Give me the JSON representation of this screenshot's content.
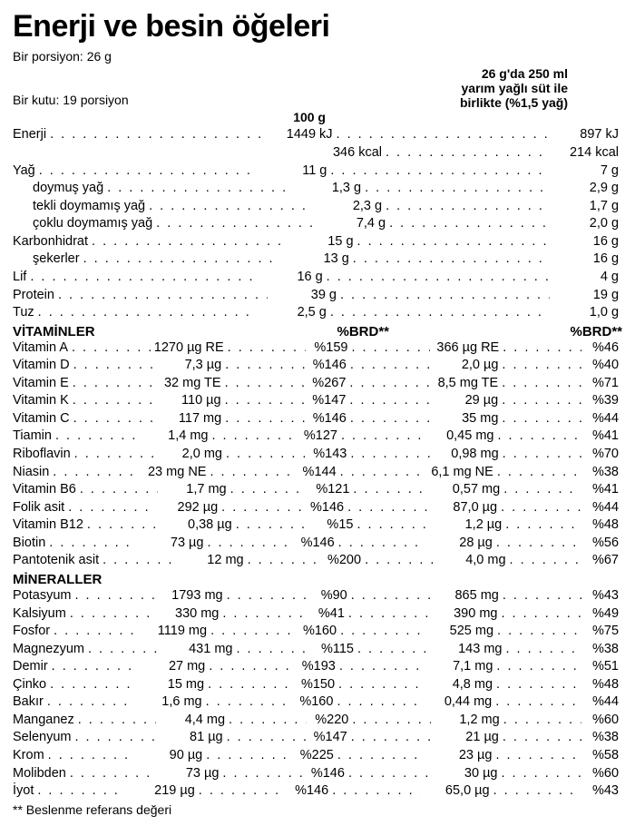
{
  "title": "Enerji ve besin öğeleri",
  "meta1": "Bir porsiyon: 26 g",
  "meta2": "Bir kutu: 19 porsiyon",
  "col1": "100 g",
  "col3_l1": "26 g'da 250 ml",
  "col3_l2": "yarım yağlı süt ile",
  "col3_l3": "birlikte (%1,5 yağ)",
  "brd": "%BRD**",
  "sec_vit": "VİTAMİNLER",
  "sec_min": "MİNERALLER",
  "footnote": "** Beslenme referans değeri",
  "basic": [
    {
      "n": "Enerji",
      "i": false,
      "c1": "1449 kJ",
      "c3": "897 kJ"
    },
    {
      "n": "",
      "i": false,
      "c1": "346 kcal",
      "c3": "214 kcal"
    },
    {
      "n": "Yağ",
      "i": false,
      "c1": "11 g",
      "c3": "7 g"
    },
    {
      "n": "doymuş yağ",
      "i": true,
      "c1": "1,3 g",
      "c3": "2,9 g"
    },
    {
      "n": "tekli doymamış yağ",
      "i": true,
      "c1": "2,3 g",
      "c3": "1,7 g"
    },
    {
      "n": "çoklu doymamış yağ",
      "i": true,
      "c1": "7,4 g",
      "c3": "2,0 g"
    },
    {
      "n": "Karbonhidrat",
      "i": false,
      "c1": "15 g",
      "c3": "16 g"
    },
    {
      "n": "şekerler",
      "i": true,
      "c1": "13 g",
      "c3": "16 g"
    },
    {
      "n": "Lif",
      "i": false,
      "c1": "16 g",
      "c3": "4 g"
    },
    {
      "n": "Protein",
      "i": false,
      "c1": "39 g",
      "c3": "19 g"
    },
    {
      "n": "Tuz",
      "i": false,
      "c1": "2,5 g",
      "c3": "1,0 g"
    }
  ],
  "vit": [
    {
      "n": "Vitamin A",
      "c1": "1270 µg RE",
      "c2": "%159",
      "c3": "366 µg RE",
      "c4": "%46"
    },
    {
      "n": "Vitamin D",
      "c1": "7,3 µg",
      "c2": "%146",
      "c3": "2,0 µg",
      "c4": "%40"
    },
    {
      "n": "Vitamin E",
      "c1": "32 mg TE",
      "c2": "%267",
      "c3": "8,5 mg TE",
      "c4": "%71"
    },
    {
      "n": "Vitamin K",
      "c1": "110 µg",
      "c2": "%147",
      "c3": "29 µg",
      "c4": "%39"
    },
    {
      "n": "Vitamin C",
      "c1": "117 mg",
      "c2": "%146",
      "c3": "35 mg",
      "c4": "%44"
    },
    {
      "n": "Tiamin",
      "c1": "1,4 mg",
      "c2": "%127",
      "c3": "0,45 mg",
      "c4": "%41"
    },
    {
      "n": "Riboflavin",
      "c1": "2,0 mg",
      "c2": "%143",
      "c3": "0,98 mg",
      "c4": "%70"
    },
    {
      "n": "Niasin",
      "c1": "23 mg NE",
      "c2": "%144",
      "c3": "6,1 mg NE",
      "c4": "%38"
    },
    {
      "n": "Vitamin B6",
      "c1": "1,7 mg",
      "c2": "%121",
      "c3": "0,57 mg",
      "c4": "%41"
    },
    {
      "n": "Folik asit",
      "c1": "292 µg",
      "c2": "%146",
      "c3": "87,0 µg",
      "c4": "%44"
    },
    {
      "n": "Vitamin B12",
      "c1": "0,38 µg",
      "c2": "%15",
      "c3": "1,2 µg",
      "c4": "%48"
    },
    {
      "n": "Biotin",
      "c1": "73 µg",
      "c2": "%146",
      "c3": "28 µg",
      "c4": "%56"
    },
    {
      "n": "Pantotenik asit",
      "c1": "12 mg",
      "c2": "%200",
      "c3": "4,0 mg",
      "c4": "%67"
    }
  ],
  "min": [
    {
      "n": "Potasyum",
      "c1": "1793 mg",
      "c2": "%90",
      "c3": "865 mg",
      "c4": "%43"
    },
    {
      "n": "Kalsiyum",
      "c1": "330 mg",
      "c2": "%41",
      "c3": "390 mg",
      "c4": "%49"
    },
    {
      "n": "Fosfor",
      "c1": "1119 mg",
      "c2": "%160",
      "c3": "525 mg",
      "c4": "%75"
    },
    {
      "n": "Magnezyum",
      "c1": "431 mg",
      "c2": "%115",
      "c3": "143 mg",
      "c4": "%38"
    },
    {
      "n": "Demir",
      "c1": "27 mg",
      "c2": "%193",
      "c3": "7,1 mg",
      "c4": "%51"
    },
    {
      "n": "Çinko",
      "c1": "15 mg",
      "c2": "%150",
      "c3": "4,8 mg",
      "c4": "%48"
    },
    {
      "n": "Bakır",
      "c1": "1,6 mg",
      "c2": "%160",
      "c3": "0,44 mg",
      "c4": "%44"
    },
    {
      "n": "Manganez",
      "c1": "4,4 mg",
      "c2": "%220",
      "c3": "1,2 mg",
      "c4": "%60"
    },
    {
      "n": "Selenyum",
      "c1": "81 µg",
      "c2": "%147",
      "c3": "21 µg",
      "c4": "%38"
    },
    {
      "n": "Krom",
      "c1": "90 µg",
      "c2": "%225",
      "c3": "23 µg",
      "c4": "%58"
    },
    {
      "n": "Molibden",
      "c1": "73 µg",
      "c2": "%146",
      "c3": "30 µg",
      "c4": "%60"
    },
    {
      "n": "İyot",
      "c1": "219 µg",
      "c2": "%146",
      "c3": "65,0 µg",
      "c4": "%43"
    }
  ]
}
